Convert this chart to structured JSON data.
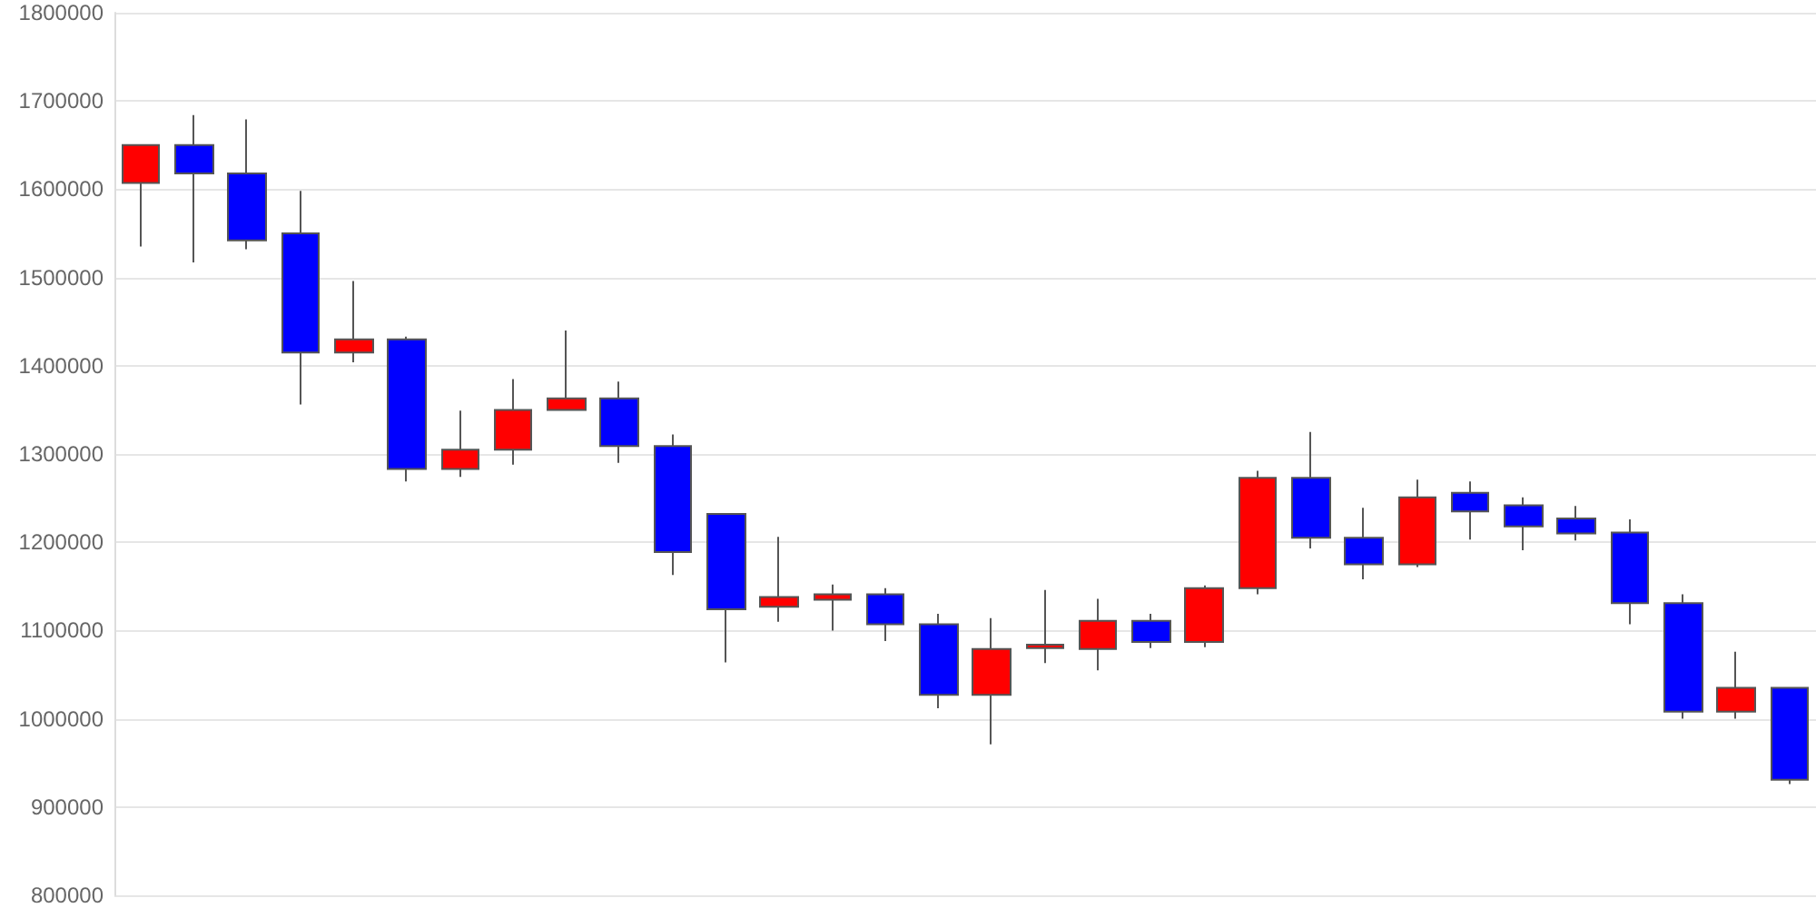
{
  "chart_data": {
    "type": "candlestick",
    "categories": [
      null,
      null,
      null,
      null,
      null,
      null,
      null,
      null,
      null,
      null,
      null,
      null,
      null,
      null,
      null,
      null,
      null,
      null,
      null,
      null,
      null,
      null,
      null,
      null,
      null,
      null,
      null,
      null,
      null,
      null,
      null,
      null
    ],
    "ohlc": [
      [
        1607000,
        1650000,
        1535000,
        1650000
      ],
      [
        1650000,
        1684000,
        1517000,
        1618000
      ],
      [
        1618000,
        1679000,
        1532000,
        1542000
      ],
      [
        1550000,
        1598000,
        1356000,
        1415000
      ],
      [
        1415000,
        1496000,
        1404000,
        1430000
      ],
      [
        1430000,
        1433000,
        1269000,
        1283000
      ],
      [
        1283000,
        1349000,
        1274000,
        1305000
      ],
      [
        1305000,
        1385000,
        1288000,
        1350000
      ],
      [
        1350000,
        1440000,
        1349000,
        1363000
      ],
      [
        1363000,
        1382000,
        1290000,
        1309000
      ],
      [
        1309000,
        1322000,
        1163000,
        1189000
      ],
      [
        1232000,
        1232000,
        1064000,
        1124000
      ],
      [
        1127000,
        1206000,
        1110000,
        1138000
      ],
      [
        1135000,
        1152000,
        1100000,
        1141000
      ],
      [
        1141000,
        1148000,
        1088000,
        1107000
      ],
      [
        1107000,
        1119000,
        1012000,
        1027000
      ],
      [
        1027000,
        1114000,
        971000,
        1079000
      ],
      [
        1080000,
        1146000,
        1063000,
        1084000
      ],
      [
        1079000,
        1136000,
        1055000,
        1111000
      ],
      [
        1111000,
        1119000,
        1080000,
        1087000
      ],
      [
        1087000,
        1151000,
        1081000,
        1148000
      ],
      [
        1148000,
        1281000,
        1141000,
        1273000
      ],
      [
        1273000,
        1325000,
        1193000,
        1205000
      ],
      [
        1205000,
        1239000,
        1158000,
        1175000
      ],
      [
        1175000,
        1271000,
        1172000,
        1251000
      ],
      [
        1256000,
        1269000,
        1203000,
        1235000
      ],
      [
        1242000,
        1251000,
        1191000,
        1218000
      ],
      [
        1227000,
        1241000,
        1202000,
        1210000
      ],
      [
        1211000,
        1226000,
        1107000,
        1131000
      ],
      [
        1131000,
        1141000,
        1000000,
        1008000
      ],
      [
        1008000,
        1076000,
        1000000,
        1035000
      ],
      [
        1035000,
        1035000,
        926000,
        931000
      ]
    ],
    "colors": [
      "#ff0000",
      "#0000ff",
      "#0000ff",
      "#0000ff",
      "#ff0000",
      "#0000ff",
      "#ff0000",
      "#ff0000",
      "#ff0000",
      "#0000ff",
      "#0000ff",
      "#0000ff",
      "#ff0000",
      "#ff0000",
      "#0000ff",
      "#0000ff",
      "#ff0000",
      "#ff0000",
      "#ff0000",
      "#0000ff",
      "#ff0000",
      "#ff0000",
      "#0000ff",
      "#0000ff",
      "#ff0000",
      "#0000ff",
      "#0000ff",
      "#0000ff",
      "#0000ff",
      "#0000ff",
      "#ff0000",
      "#0000ff"
    ],
    "ylim": [
      800000,
      1800000
    ],
    "yticks": [
      800000,
      900000,
      1000000,
      1100000,
      1200000,
      1300000,
      1400000,
      1500000,
      1600000,
      1700000,
      1800000
    ],
    "grid": "y",
    "tick_labels": "y"
  }
}
